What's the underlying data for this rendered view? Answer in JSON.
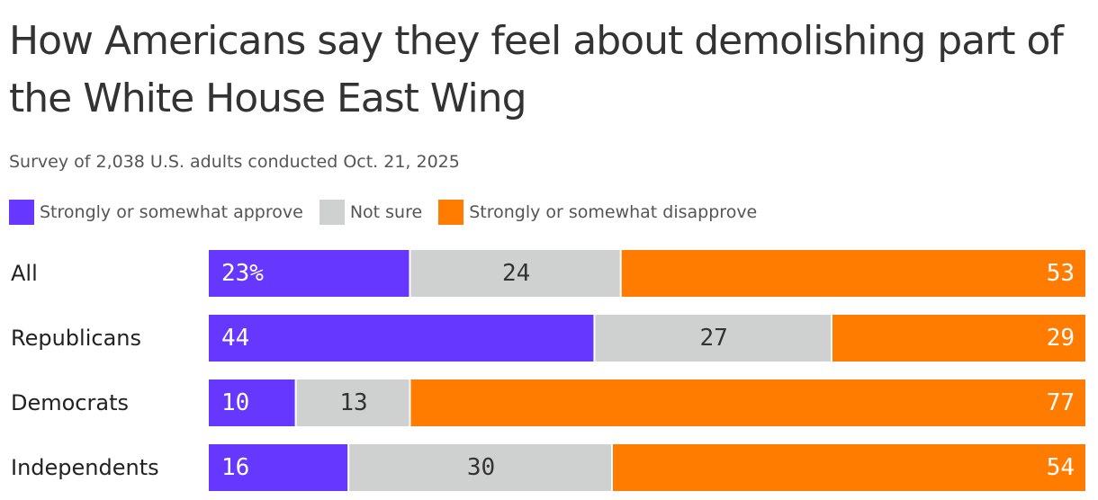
{
  "chart_data": {
    "type": "bar",
    "orientation": "horizontal",
    "stacked": true,
    "title": "How Americans say they feel about demolishing part of the White House East Wing",
    "subtitle": "Survey of 2,038 U.S. adults conducted Oct. 21, 2025",
    "categories": [
      "All",
      "Republicans",
      "Democrats",
      "Independents"
    ],
    "series": [
      {
        "name": "Strongly or somewhat approve",
        "color": "#6638ff",
        "label_color": "#ffffff",
        "values": [
          23,
          44,
          10,
          16
        ],
        "labels": [
          "23%",
          "44",
          "10",
          "16"
        ],
        "label_align": "start"
      },
      {
        "name": "Not sure",
        "color": "#cfd0d0",
        "label_color": "#333333",
        "values": [
          24,
          27,
          13,
          30
        ],
        "labels": [
          "24",
          "27",
          "13",
          "30"
        ],
        "label_align": "middle"
      },
      {
        "name": "Strongly or somewhat disapprove",
        "color": "#ff7c00",
        "label_color": "#ffffff",
        "values": [
          53,
          29,
          77,
          54
        ],
        "labels": [
          "53",
          "29",
          "77",
          "54"
        ],
        "label_align": "end"
      }
    ],
    "xlim": [
      0,
      100
    ],
    "legend": "top",
    "grid": false
  }
}
